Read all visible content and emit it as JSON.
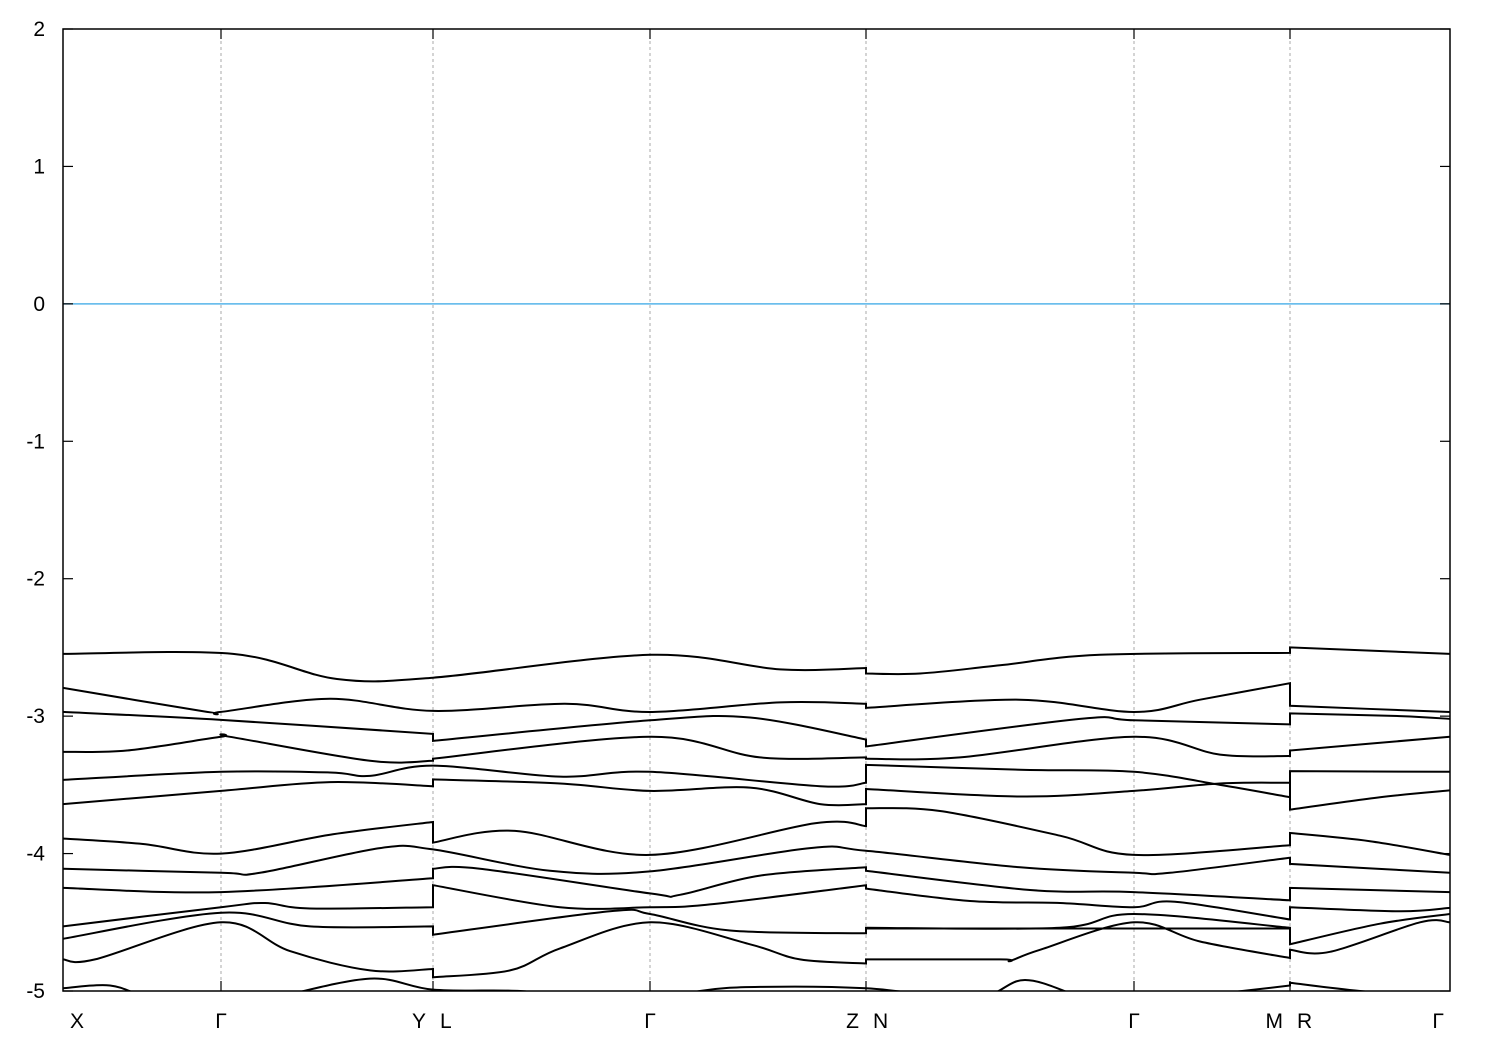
{
  "chart_data": {
    "type": "line",
    "title": "",
    "xlabel": "",
    "ylabel": "",
    "ylim": [
      -5,
      2
    ],
    "xlim": [
      0,
      13.87
    ],
    "yticks": [
      -5,
      -4,
      -3,
      -2,
      -1,
      0,
      1,
      2
    ],
    "ytick_labels": [
      "-5",
      "-4",
      "-3",
      "-2",
      "-1",
      "0",
      "1",
      "2"
    ],
    "grid": "vertical dashed at high-symmetry points",
    "line_color": "#000000",
    "fermi_level": {
      "value": 0,
      "color": "#56b4e9"
    },
    "kpoints": [
      {
        "k": 0,
        "labels": [
          "X"
        ]
      },
      {
        "k": 1.58,
        "labels": [
          "Γ"
        ]
      },
      {
        "k": 3.7,
        "labels": [
          "Y",
          "L"
        ]
      },
      {
        "k": 5.87,
        "labels": [
          "Γ"
        ]
      },
      {
        "k": 8.03,
        "labels": [
          "Z",
          "N"
        ]
      },
      {
        "k": 10.71,
        "labels": [
          "Γ"
        ]
      },
      {
        "k": 12.27,
        "labels": [
          "M",
          "R"
        ]
      },
      {
        "k": 13.87,
        "labels": [
          "Γ"
        ]
      }
    ],
    "bands": [
      [
        [
          0,
          -2.547
        ],
        [
          1.7,
          -2.547
        ],
        [
          2.74,
          -2.73
        ],
        [
          3.7,
          -2.72
        ],
        [
          5.87,
          -2.554
        ],
        [
          7.17,
          -2.66
        ],
        [
          8.03,
          -2.65
        ],
        [
          8.03,
          -2.69
        ],
        [
          8.57,
          -2.69
        ],
        [
          9.37,
          -2.63
        ],
        [
          10.37,
          -2.554
        ],
        [
          12.27,
          -2.54
        ],
        [
          12.27,
          -2.5
        ],
        [
          13.87,
          -2.547
        ]
      ],
      [
        [
          0,
          -2.794
        ],
        [
          1.44,
          -2.969
        ],
        [
          1.58,
          -2.969
        ],
        [
          2.67,
          -2.874
        ],
        [
          3.7,
          -2.962
        ],
        [
          5.02,
          -2.91
        ],
        [
          5.87,
          -2.97
        ],
        [
          7.17,
          -2.9
        ],
        [
          8.03,
          -2.91
        ],
        [
          8.03,
          -2.94
        ],
        [
          9.57,
          -2.88
        ],
        [
          10.71,
          -2.97
        ],
        [
          11.37,
          -2.88
        ],
        [
          12.27,
          -2.76
        ],
        [
          12.27,
          -2.925
        ],
        [
          13.87,
          -2.97
        ]
      ],
      [
        [
          0,
          -2.969
        ],
        [
          1.58,
          -3.027
        ],
        [
          3.7,
          -3.129
        ],
        [
          3.7,
          -3.18
        ],
        [
          5.87,
          -3.03
        ],
        [
          6.87,
          -3.01
        ],
        [
          8.03,
          -3.17
        ],
        [
          8.03,
          -3.22
        ],
        [
          10.17,
          -3.02
        ],
        [
          10.71,
          -3.03
        ],
        [
          12.27,
          -3.06
        ],
        [
          12.27,
          -2.98
        ],
        [
          13.37,
          -3.0
        ],
        [
          13.87,
          -3.02
        ]
      ],
      [
        [
          0,
          -3.26
        ],
        [
          0.64,
          -3.25
        ],
        [
          1.58,
          -3.15
        ],
        [
          1.67,
          -3.15
        ],
        [
          3.07,
          -3.325
        ],
        [
          3.7,
          -3.325
        ],
        [
          3.7,
          -3.31
        ],
        [
          5.87,
          -3.15
        ],
        [
          6.97,
          -3.3
        ],
        [
          8.03,
          -3.3
        ],
        [
          8.03,
          -3.31
        ],
        [
          8.97,
          -3.3
        ],
        [
          10.71,
          -3.15
        ],
        [
          11.57,
          -3.28
        ],
        [
          12.27,
          -3.29
        ],
        [
          12.27,
          -3.25
        ],
        [
          13.87,
          -3.15
        ]
      ],
      [
        [
          0,
          -3.464
        ],
        [
          1.58,
          -3.405
        ],
        [
          2.67,
          -3.41
        ],
        [
          3.07,
          -3.435
        ],
        [
          3.7,
          -3.36
        ],
        [
          4.97,
          -3.44
        ],
        [
          5.87,
          -3.405
        ],
        [
          7.57,
          -3.51
        ],
        [
          8.03,
          -3.485
        ],
        [
          8.03,
          -3.355
        ],
        [
          9.57,
          -3.39
        ],
        [
          10.71,
          -3.405
        ],
        [
          11.57,
          -3.5
        ],
        [
          12.27,
          -3.59
        ],
        [
          12.27,
          -3.4
        ],
        [
          13.87,
          -3.405
        ]
      ],
      [
        [
          0,
          -3.64
        ],
        [
          1.58,
          -3.544
        ],
        [
          2.67,
          -3.48
        ],
        [
          3.7,
          -3.51
        ],
        [
          3.7,
          -3.46
        ],
        [
          4.97,
          -3.49
        ],
        [
          5.87,
          -3.544
        ],
        [
          6.87,
          -3.52
        ],
        [
          7.57,
          -3.64
        ],
        [
          8.03,
          -3.64
        ],
        [
          8.03,
          -3.53
        ],
        [
          9.57,
          -3.585
        ],
        [
          10.71,
          -3.544
        ],
        [
          11.57,
          -3.49
        ],
        [
          12.27,
          -3.485
        ],
        [
          12.27,
          -3.68
        ],
        [
          13.17,
          -3.59
        ],
        [
          13.87,
          -3.54
        ]
      ],
      [
        [
          0,
          -3.89
        ],
        [
          0.8,
          -3.93
        ],
        [
          1.58,
          -4.0
        ],
        [
          2.7,
          -3.86
        ],
        [
          3.7,
          -3.77
        ],
        [
          3.7,
          -3.92
        ],
        [
          4.52,
          -3.835
        ],
        [
          5.87,
          -4.01
        ],
        [
          7.52,
          -3.78
        ],
        [
          8.03,
          -3.8
        ],
        [
          8.03,
          -3.67
        ],
        [
          8.77,
          -3.69
        ],
        [
          9.97,
          -3.87
        ],
        [
          10.71,
          -4.01
        ],
        [
          12.27,
          -3.94
        ],
        [
          12.27,
          -3.85
        ],
        [
          13.07,
          -3.91
        ],
        [
          13.87,
          -4.01
        ]
      ],
      [
        [
          0,
          -4.11
        ],
        [
          1.58,
          -4.14
        ],
        [
          1.97,
          -4.14
        ],
        [
          3.17,
          -3.96
        ],
        [
          3.7,
          -3.97
        ],
        [
          4.87,
          -4.125
        ],
        [
          5.87,
          -4.13
        ],
        [
          7.47,
          -3.96
        ],
        [
          8.03,
          -3.98
        ],
        [
          9.57,
          -4.1
        ],
        [
          10.71,
          -4.14
        ],
        [
          11.07,
          -4.14
        ],
        [
          12.27,
          -4.03
        ],
        [
          12.27,
          -4.075
        ],
        [
          13.87,
          -4.14
        ]
      ],
      [
        [
          0,
          -4.25
        ],
        [
          1.58,
          -4.28
        ],
        [
          3.7,
          -4.18
        ],
        [
          3.7,
          -4.11
        ],
        [
          4.17,
          -4.11
        ],
        [
          5.87,
          -4.29
        ],
        [
          6.17,
          -4.3
        ],
        [
          6.97,
          -4.16
        ],
        [
          8.03,
          -4.1
        ],
        [
          8.03,
          -4.125
        ],
        [
          9.67,
          -4.265
        ],
        [
          10.71,
          -4.28
        ],
        [
          12.27,
          -4.34
        ],
        [
          12.27,
          -4.25
        ],
        [
          13.87,
          -4.28
        ]
      ],
      [
        [
          0,
          -4.53
        ],
        [
          1.58,
          -4.39
        ],
        [
          2.02,
          -4.36
        ],
        [
          2.47,
          -4.4
        ],
        [
          3.7,
          -4.39
        ],
        [
          3.7,
          -4.23
        ],
        [
          4.97,
          -4.39
        ],
        [
          5.87,
          -4.39
        ],
        [
          6.47,
          -4.37
        ],
        [
          8.03,
          -4.23
        ],
        [
          8.03,
          -4.255
        ],
        [
          9.07,
          -4.345
        ],
        [
          9.97,
          -4.36
        ],
        [
          10.71,
          -4.39
        ],
        [
          11.12,
          -4.35
        ],
        [
          12.27,
          -4.48
        ],
        [
          12.27,
          -4.39
        ],
        [
          13.37,
          -4.42
        ],
        [
          13.87,
          -4.395
        ]
      ],
      [
        [
          0,
          -4.62
        ],
        [
          1.58,
          -4.43
        ],
        [
          2.47,
          -4.53
        ],
        [
          3.7,
          -4.53
        ],
        [
          3.7,
          -4.59
        ],
        [
          5.47,
          -4.42
        ],
        [
          5.87,
          -4.44
        ],
        [
          6.67,
          -4.56
        ],
        [
          8.03,
          -4.58
        ],
        [
          8.03,
          -4.54
        ],
        [
          9.97,
          -4.54
        ],
        [
          10.71,
          -4.44
        ],
        [
          12.27,
          -4.54
        ],
        [
          12.27,
          -4.66
        ],
        [
          13.17,
          -4.51
        ],
        [
          13.87,
          -4.44
        ]
      ],
      [
        [
          0,
          -4.77
        ],
        [
          0.32,
          -4.77
        ],
        [
          1.58,
          -4.5
        ],
        [
          2.27,
          -4.71
        ],
        [
          3.07,
          -4.85
        ],
        [
          3.7,
          -4.84
        ],
        [
          3.7,
          -4.9
        ],
        [
          4.47,
          -4.85
        ],
        [
          4.97,
          -4.69
        ],
        [
          5.87,
          -4.5
        ],
        [
          6.87,
          -4.66
        ],
        [
          7.37,
          -4.77
        ],
        [
          8.03,
          -4.8
        ],
        [
          8.03,
          -4.77
        ],
        [
          9.37,
          -4.77
        ],
        [
          9.47,
          -4.78
        ],
        [
          9.77,
          -4.7
        ],
        [
          10.71,
          -4.5
        ],
        [
          11.37,
          -4.64
        ],
        [
          12.27,
          -4.76
        ],
        [
          12.27,
          -4.7
        ],
        [
          12.67,
          -4.715
        ],
        [
          13.57,
          -4.5
        ],
        [
          13.87,
          -4.5
        ]
      ],
      [
        [
          0,
          -4.98
        ],
        [
          0.47,
          -4.96
        ],
        [
          0.87,
          -5.05
        ],
        [
          1.58,
          -5.15
        ],
        [
          2.12,
          -5.05
        ],
        [
          3.07,
          -4.91
        ],
        [
          3.7,
          -4.99
        ],
        [
          4.57,
          -5.0
        ],
        [
          5.07,
          -5.05
        ],
        [
          5.87,
          -5.1
        ],
        [
          6.37,
          -5.0
        ],
        [
          6.97,
          -4.97
        ],
        [
          8.03,
          -4.98
        ],
        [
          9.12,
          -5.05
        ],
        [
          9.62,
          -4.92
        ],
        [
          10.22,
          -5.05
        ],
        [
          10.71,
          -5.1
        ],
        [
          11.57,
          -5.02
        ],
        [
          12.27,
          -4.96
        ],
        [
          12.27,
          -4.94
        ],
        [
          12.97,
          -5.0
        ],
        [
          13.87,
          -5.05
        ]
      ],
      [
        [
          8.03,
          -4.545
        ],
        [
          12.27,
          -4.545
        ]
      ]
    ]
  }
}
